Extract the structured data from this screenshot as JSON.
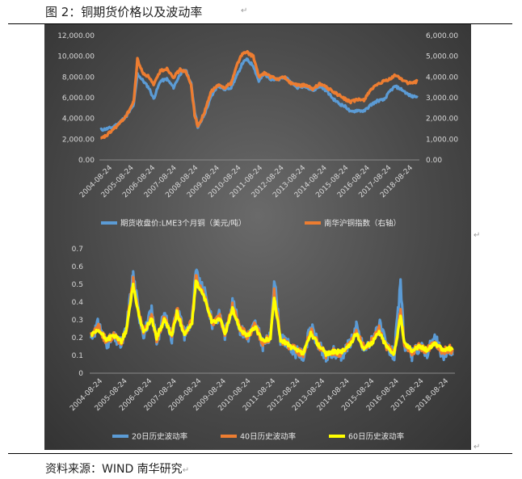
{
  "figure_title": "图 2：铜期货价格以及波动率",
  "source_note": "资料来源：WIND 南华研究",
  "colors": {
    "lme": "#5b9bd5",
    "nanhua": "#ed7d31",
    "vol20": "#5b9bd5",
    "vol40": "#ed7d31",
    "vol60": "#ffff00",
    "tick_text": "#d9d9d9"
  },
  "chart_data": [
    {
      "type": "line",
      "x_tick_labels": [
        "2004-08-24",
        "2005-08-24",
        "2006-08-24",
        "2007-08-24",
        "2008-08-24",
        "2009-08-24",
        "2010-08-24",
        "2011-08-24",
        "2012-08-24",
        "2013-08-24",
        "2014-08-24",
        "2015-08-24",
        "2016-08-24",
        "2017-08-24",
        "2018-08-24"
      ],
      "y_left_ticks": [
        "12,000.00",
        "10,000.00",
        "8,000.00",
        "6,000.00",
        "4,000.00",
        "2,000.00",
        "0.00"
      ],
      "y_right_ticks": [
        "6,000.00",
        "5,000.00",
        "4,000.00",
        "3,000.00",
        "2,000.00",
        "1,000.00",
        "0.00"
      ],
      "ylim_left": [
        0,
        12000
      ],
      "ylim_right": [
        0,
        6000
      ],
      "legend_position": "bottom",
      "series": [
        {
          "name": "期货收盘价:LME3个月铜（美元/吨）",
          "axis": "left",
          "x": [
            2004.7,
            2005.0,
            2005.3,
            2005.6,
            2005.9,
            2006.2,
            2006.37,
            2006.6,
            2006.9,
            2007.1,
            2007.4,
            2007.7,
            2008.0,
            2008.3,
            2008.55,
            2008.8,
            2008.95,
            2009.1,
            2009.4,
            2009.7,
            2010.0,
            2010.3,
            2010.6,
            2010.9,
            2011.1,
            2011.3,
            2011.6,
            2011.85,
            2012.1,
            2012.4,
            2012.7,
            2013.0,
            2013.3,
            2013.6,
            2014.0,
            2014.3,
            2014.6,
            2014.9,
            2015.2,
            2015.5,
            2015.8,
            2016.0,
            2016.3,
            2016.6,
            2016.9,
            2017.2,
            2017.5,
            2017.8,
            2018.0,
            2018.3,
            2018.6,
            2018.8,
            2019.0
          ],
          "y": [
            2900,
            3000,
            3200,
            3700,
            4300,
            5300,
            8300,
            7700,
            6900,
            5900,
            7600,
            7800,
            7000,
            8300,
            8700,
            7300,
            4800,
            3100,
            4400,
            6100,
            7200,
            6800,
            7000,
            8300,
            9300,
            9700,
            9100,
            7600,
            8300,
            7800,
            7700,
            8000,
            7500,
            7000,
            7100,
            6700,
            7100,
            6700,
            5900,
            5400,
            5100,
            4600,
            4800,
            4700,
            5300,
            5700,
            5800,
            6700,
            7100,
            6800,
            6300,
            6100,
            6200
          ]
        },
        {
          "name": "南华沪铜指数（右轴）",
          "axis": "right",
          "x": [
            2004.7,
            2005.0,
            2005.3,
            2005.6,
            2005.9,
            2006.2,
            2006.37,
            2006.6,
            2006.9,
            2007.1,
            2007.4,
            2007.7,
            2008.0,
            2008.3,
            2008.55,
            2008.8,
            2008.95,
            2009.1,
            2009.4,
            2009.7,
            2010.0,
            2010.3,
            2010.6,
            2010.9,
            2011.1,
            2011.3,
            2011.6,
            2011.85,
            2012.1,
            2012.4,
            2012.7,
            2013.0,
            2013.3,
            2013.6,
            2014.0,
            2014.3,
            2014.6,
            2014.9,
            2015.2,
            2015.5,
            2015.8,
            2016.0,
            2016.3,
            2016.6,
            2016.9,
            2017.2,
            2017.5,
            2017.8,
            2018.0,
            2018.3,
            2018.6,
            2018.8,
            2019.0
          ],
          "y": [
            1000,
            1200,
            1500,
            1800,
            2200,
            2800,
            4850,
            4200,
            4000,
            3600,
            4300,
            4400,
            4000,
            4350,
            4250,
            3600,
            2200,
            1600,
            2300,
            3300,
            3600,
            3500,
            3700,
            4700,
            5100,
            5200,
            5000,
            4000,
            4200,
            4000,
            3900,
            4000,
            3700,
            3600,
            3600,
            3400,
            3700,
            3500,
            3300,
            3100,
            2900,
            2800,
            2900,
            2900,
            3400,
            3600,
            3800,
            3900,
            4100,
            3900,
            3700,
            3700,
            3800
          ]
        }
      ]
    },
    {
      "type": "line",
      "x_tick_labels": [
        "2004-08-24",
        "2005-08-24",
        "2006-08-24",
        "2007-08-24",
        "2008-08-24",
        "2009-08-24",
        "2010-08-24",
        "2011-08-24",
        "2012-08-24",
        "2013-08-24",
        "2014-08-24",
        "2015-08-24",
        "2016-08-24",
        "2017-08-24",
        "2018-08-24"
      ],
      "y_ticks": [
        "0.7",
        "0.6",
        "0.5",
        "0.4",
        "0.3",
        "0.2",
        "0.1",
        "0"
      ],
      "ylim": [
        0,
        0.7
      ],
      "legend_position": "bottom",
      "series": [
        {
          "name": "20日历史波动率",
          "x": [
            2004.7,
            2005.0,
            2005.3,
            2005.6,
            2005.9,
            2006.1,
            2006.37,
            2006.6,
            2006.8,
            2007.1,
            2007.3,
            2007.6,
            2007.9,
            2008.1,
            2008.4,
            2008.7,
            2008.85,
            2009.0,
            2009.2,
            2009.5,
            2009.8,
            2010.0,
            2010.3,
            2010.6,
            2010.9,
            2011.2,
            2011.5,
            2011.8,
            2011.95,
            2012.2,
            2012.5,
            2012.8,
            2013.1,
            2013.4,
            2013.7,
            2014.0,
            2014.3,
            2014.6,
            2014.9,
            2015.2,
            2015.5,
            2015.8,
            2016.1,
            2016.4,
            2016.7,
            2016.95,
            2017.1,
            2017.4,
            2017.7,
            2018.0,
            2018.3,
            2018.6,
            2018.9,
            2019.0
          ],
          "y": [
            0.2,
            0.28,
            0.17,
            0.2,
            0.16,
            0.25,
            0.56,
            0.33,
            0.22,
            0.35,
            0.18,
            0.33,
            0.2,
            0.38,
            0.22,
            0.3,
            0.57,
            0.5,
            0.45,
            0.28,
            0.33,
            0.22,
            0.4,
            0.25,
            0.2,
            0.28,
            0.16,
            0.2,
            0.54,
            0.19,
            0.16,
            0.12,
            0.1,
            0.26,
            0.16,
            0.08,
            0.12,
            0.1,
            0.16,
            0.26,
            0.13,
            0.18,
            0.28,
            0.15,
            0.1,
            0.5,
            0.16,
            0.1,
            0.15,
            0.12,
            0.2,
            0.1,
            0.13,
            0.1
          ]
        },
        {
          "name": "40日历史波动率",
          "x": [
            2004.7,
            2005.0,
            2005.3,
            2005.6,
            2005.9,
            2006.1,
            2006.37,
            2006.6,
            2006.8,
            2007.1,
            2007.3,
            2007.6,
            2007.9,
            2008.1,
            2008.4,
            2008.7,
            2008.85,
            2009.0,
            2009.2,
            2009.5,
            2009.8,
            2010.0,
            2010.3,
            2010.6,
            2010.9,
            2011.2,
            2011.5,
            2011.8,
            2011.95,
            2012.2,
            2012.5,
            2012.8,
            2013.1,
            2013.4,
            2013.7,
            2014.0,
            2014.3,
            2014.6,
            2014.9,
            2015.2,
            2015.5,
            2015.8,
            2016.1,
            2016.4,
            2016.7,
            2016.95,
            2017.1,
            2017.4,
            2017.7,
            2018.0,
            2018.3,
            2018.6,
            2018.9,
            2019.0
          ],
          "y": [
            0.21,
            0.26,
            0.18,
            0.21,
            0.17,
            0.25,
            0.52,
            0.33,
            0.23,
            0.33,
            0.19,
            0.31,
            0.21,
            0.36,
            0.22,
            0.29,
            0.54,
            0.49,
            0.43,
            0.28,
            0.32,
            0.22,
            0.38,
            0.25,
            0.21,
            0.27,
            0.17,
            0.2,
            0.46,
            0.19,
            0.16,
            0.13,
            0.11,
            0.24,
            0.16,
            0.1,
            0.12,
            0.11,
            0.16,
            0.24,
            0.14,
            0.18,
            0.25,
            0.15,
            0.11,
            0.35,
            0.17,
            0.12,
            0.15,
            0.13,
            0.18,
            0.12,
            0.14,
            0.12
          ]
        },
        {
          "name": "60日历史波动率",
          "x": [
            2004.7,
            2005.0,
            2005.3,
            2005.6,
            2005.9,
            2006.1,
            2006.37,
            2006.6,
            2006.8,
            2007.1,
            2007.3,
            2007.6,
            2007.9,
            2008.1,
            2008.4,
            2008.7,
            2008.85,
            2009.0,
            2009.2,
            2009.5,
            2009.8,
            2010.0,
            2010.3,
            2010.6,
            2010.9,
            2011.2,
            2011.5,
            2011.8,
            2011.95,
            2012.2,
            2012.5,
            2012.8,
            2013.1,
            2013.4,
            2013.7,
            2014.0,
            2014.3,
            2014.6,
            2014.9,
            2015.2,
            2015.5,
            2015.8,
            2016.1,
            2016.4,
            2016.7,
            2016.95,
            2017.1,
            2017.4,
            2017.7,
            2018.0,
            2018.3,
            2018.6,
            2018.9,
            2019.0
          ],
          "y": [
            0.21,
            0.24,
            0.19,
            0.21,
            0.18,
            0.24,
            0.5,
            0.32,
            0.23,
            0.31,
            0.2,
            0.3,
            0.21,
            0.34,
            0.22,
            0.28,
            0.51,
            0.48,
            0.42,
            0.28,
            0.31,
            0.22,
            0.36,
            0.25,
            0.21,
            0.26,
            0.18,
            0.2,
            0.42,
            0.19,
            0.16,
            0.13,
            0.11,
            0.22,
            0.16,
            0.11,
            0.12,
            0.12,
            0.15,
            0.22,
            0.14,
            0.17,
            0.23,
            0.15,
            0.11,
            0.32,
            0.17,
            0.13,
            0.15,
            0.13,
            0.17,
            0.13,
            0.14,
            0.13
          ]
        }
      ]
    }
  ]
}
